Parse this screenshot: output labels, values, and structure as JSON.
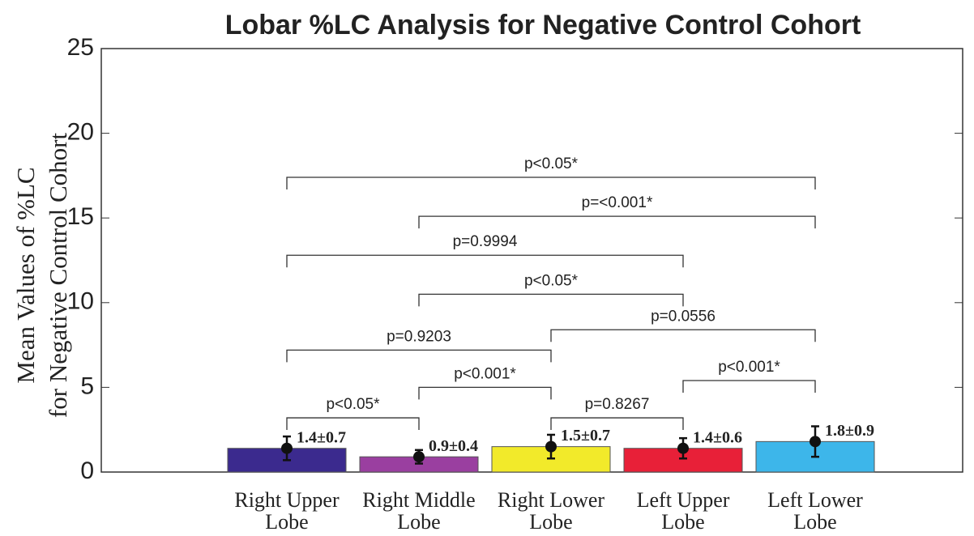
{
  "chart_data": {
    "type": "bar",
    "title": "Lobar %LC Analysis for Negative Control Cohort",
    "ylabel": [
      "Mean Values of %LC",
      "for Negative Control Cohort"
    ],
    "categories": [
      "Right Upper Lobe",
      "Right Middle Lobe",
      "Right Lower Lobe",
      "Left Upper Lobe",
      "Left Lower Lobe"
    ],
    "values": [
      1.4,
      0.9,
      1.5,
      1.4,
      1.8
    ],
    "errors": [
      0.7,
      0.4,
      0.7,
      0.6,
      0.9
    ],
    "value_labels": [
      "1.4±0.7",
      "0.9±0.4",
      "1.5±0.7",
      "1.4±0.6",
      "1.8±0.9"
    ],
    "colors": [
      "#3b2a8e",
      "#9a3fa0",
      "#f2ea2a",
      "#e82038",
      "#3db6ea"
    ],
    "ylim": [
      0,
      25
    ],
    "yticks": [
      0,
      5,
      10,
      15,
      20,
      25
    ],
    "annotations": [
      {
        "text": "p<0.05*",
        "between": [
          "Right Upper Lobe",
          "Left Lower Lobe"
        ],
        "y": 17.4
      },
      {
        "text": "p=<0.001*",
        "between": [
          "Right Middle Lobe",
          "Left Lower Lobe"
        ],
        "y": 15.1
      },
      {
        "text": "p=0.9994",
        "between": [
          "Right Upper Lobe",
          "Left Upper Lobe"
        ],
        "y": 12.8
      },
      {
        "text": "p<0.05*",
        "between": [
          "Right Middle Lobe",
          "Left Upper Lobe"
        ],
        "y": 10.5
      },
      {
        "text": "p=0.0556",
        "between": [
          "Right Lower Lobe",
          "Left Lower Lobe"
        ],
        "y": 8.4
      },
      {
        "text": "p=0.9203",
        "between": [
          "Right Upper Lobe",
          "Right Lower Lobe"
        ],
        "y": 7.2
      },
      {
        "text": "p<0.001*",
        "between": [
          "Left Upper Lobe",
          "Left Lower Lobe"
        ],
        "y": 5.4
      },
      {
        "text": "p<0.001*",
        "between": [
          "Right Middle Lobe",
          "Right Lower Lobe"
        ],
        "y": 5.0
      },
      {
        "text": "p=0.8267",
        "between": [
          "Right Lower Lobe",
          "Left Upper Lobe"
        ],
        "y": 3.2
      },
      {
        "text": "p<0.05*",
        "between": [
          "Right Upper Lobe",
          "Right Middle Lobe"
        ],
        "y": 3.2
      }
    ]
  }
}
